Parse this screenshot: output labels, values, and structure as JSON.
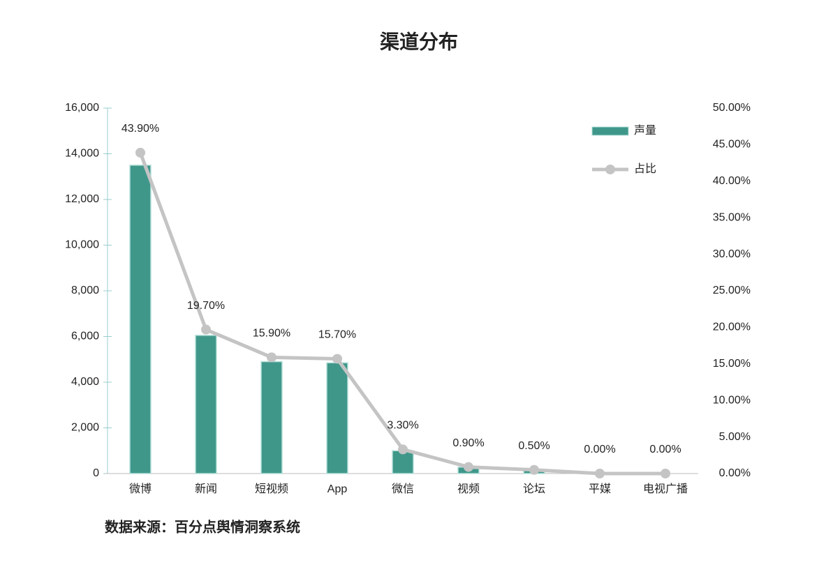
{
  "chart_data": {
    "type": "bar_line",
    "title": "渠道分布",
    "source": "数据来源：百分点舆情洞察系统",
    "categories": [
      "微博",
      "新闻",
      "短视频",
      "App",
      "微信",
      "视频",
      "论坛",
      "平媒",
      "电视广播"
    ],
    "series": [
      {
        "name": "声量",
        "type": "bar",
        "color": "#3f978a",
        "values": [
          13500,
          6050,
          4900,
          4850,
          1000,
          280,
          150,
          0,
          0
        ]
      },
      {
        "name": "占比",
        "type": "line",
        "axis": "y2",
        "color": "#c4c4c4",
        "values": [
          43.9,
          19.7,
          15.9,
          15.7,
          3.3,
          0.9,
          0.5,
          0,
          0
        ],
        "value_labels": [
          "43.90%",
          "19.70%",
          "15.90%",
          "15.70%",
          "3.30%",
          "0.90%",
          "0.50%",
          "0.00%",
          "0.00%"
        ]
      }
    ],
    "ylim": [
      0,
      16000
    ],
    "yticks": [
      0,
      {
        "value": 2000,
        "label": "2,000"
      },
      {
        "value": 4000,
        "label": "4,000"
      },
      {
        "value": 6000,
        "label": "6,000"
      },
      {
        "value": 8000,
        "label": "8,000"
      },
      {
        "value": 10000,
        "label": "10,000"
      },
      {
        "value": 12000,
        "label": "12,000"
      },
      {
        "value": 14000,
        "label": "14,000"
      },
      {
        "value": 16000,
        "label": "16,000"
      }
    ],
    "y2lim": [
      0,
      50
    ],
    "y2ticks": [
      {
        "value": 0,
        "label": "0.00%"
      },
      {
        "value": 5,
        "label": "5.00%"
      },
      {
        "value": 10,
        "label": "10.00%"
      },
      {
        "value": 15,
        "label": "15.00%"
      },
      {
        "value": 20,
        "label": "20.00%"
      },
      {
        "value": 25,
        "label": "25.00%"
      },
      {
        "value": 30,
        "label": "30.00%"
      },
      {
        "value": 35,
        "label": "35.00%"
      },
      {
        "value": 40,
        "label": "40.00%"
      },
      {
        "value": 45,
        "label": "45.00%"
      },
      {
        "value": 50,
        "label": "50.00%"
      }
    ],
    "legend": "upper right"
  }
}
